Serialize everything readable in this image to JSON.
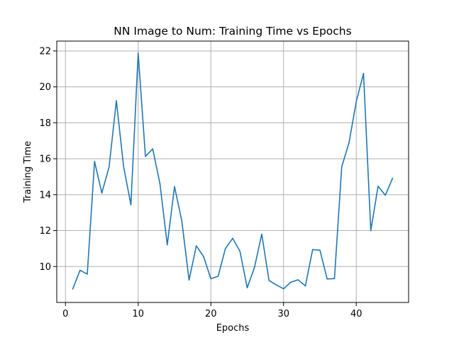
{
  "chart_data": {
    "type": "line",
    "title": "NN Image to Num: Training Time vs Epochs",
    "xlabel": "Epochs",
    "ylabel": "Training Time",
    "xlim": [
      -1.2,
      47.2
    ],
    "ylim": [
      8.0,
      22.55
    ],
    "x_ticks": [
      0,
      10,
      20,
      30,
      40
    ],
    "y_ticks": [
      10,
      12,
      14,
      16,
      18,
      20,
      22
    ],
    "grid": true,
    "series_color": "#1f77b4",
    "series": [
      {
        "x": [
          1,
          2,
          3,
          4,
          5,
          6,
          7,
          8,
          9,
          10,
          11,
          12,
          13,
          14,
          15,
          16,
          17,
          18,
          19,
          20,
          21,
          22,
          23,
          24,
          25,
          26,
          27,
          28,
          29,
          30,
          31,
          32,
          33,
          34,
          35,
          36,
          37,
          38,
          39,
          40,
          41,
          42,
          43,
          44,
          45
        ],
        "values": [
          8.75,
          9.79,
          9.58,
          15.85,
          14.09,
          15.55,
          19.23,
          15.55,
          13.44,
          21.88,
          16.13,
          16.55,
          14.6,
          11.21,
          14.45,
          12.55,
          9.25,
          11.15,
          10.55,
          9.32,
          9.46,
          11.0,
          11.57,
          10.85,
          8.82,
          9.95,
          11.8,
          9.22,
          8.98,
          8.76,
          9.13,
          9.26,
          8.92,
          10.94,
          10.91,
          9.31,
          9.33,
          15.55,
          16.89,
          19.18,
          20.75,
          12.0,
          14.47,
          13.97,
          14.92
        ]
      }
    ]
  }
}
